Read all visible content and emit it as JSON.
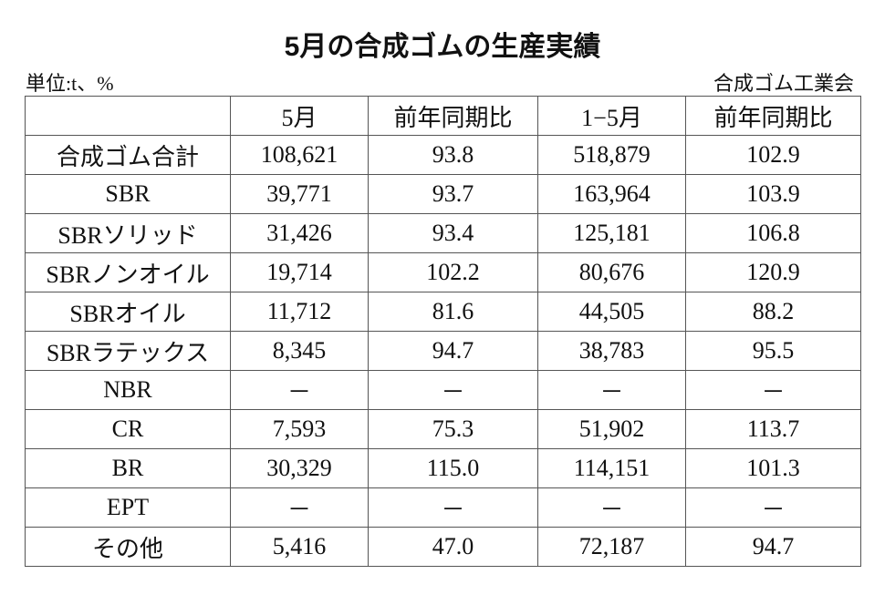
{
  "header": {
    "title": "5月の合成ゴムの生産実績",
    "unit": "単位:t、%",
    "source": "合成ゴム工業会"
  },
  "table": {
    "columns": [
      "5月",
      "前年同期比",
      "1−5月",
      "前年同期比"
    ],
    "rows": [
      [
        "合成ゴム合計",
        "108,621",
        "93.8",
        "518,879",
        "102.9"
      ],
      [
        "SBR",
        "39,771",
        "93.7",
        "163,964",
        "103.9"
      ],
      [
        "SBRソリッド",
        "31,426",
        "93.4",
        "125,181",
        "106.8"
      ],
      [
        "SBRノンオイル",
        "19,714",
        "102.2",
        "80,676",
        "120.9"
      ],
      [
        "SBRオイル",
        "11,712",
        "81.6",
        "44,505",
        "88.2"
      ],
      [
        "SBRラテックス",
        "8,345",
        "94.7",
        "38,783",
        "95.5"
      ],
      [
        "NBR",
        "－",
        "－",
        "－",
        "－"
      ],
      [
        "CR",
        "7,593",
        "75.3",
        "51,902",
        "113.7"
      ],
      [
        "BR",
        "30,329",
        "115.0",
        "114,151",
        "101.3"
      ],
      [
        "EPT",
        "－",
        "－",
        "－",
        "－"
      ],
      [
        "その他",
        "5,416",
        "47.0",
        "72,187",
        "94.7"
      ]
    ]
  }
}
